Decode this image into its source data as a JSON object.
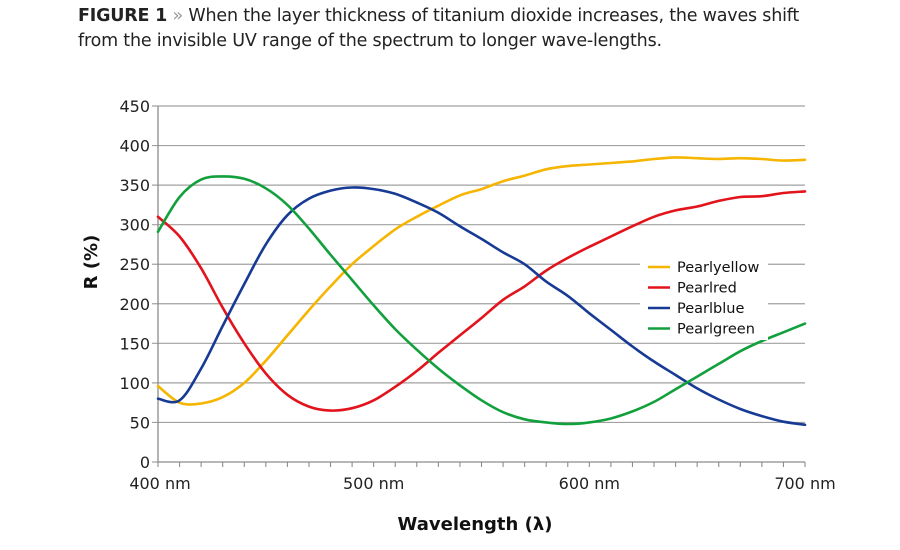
{
  "caption": {
    "figure_label": "FIGURE 1",
    "separator": "»",
    "text": "When the layer thickness of titanium dioxide increases, the waves shift from the invisible UV range of the spectrum to longer wave-lengths."
  },
  "chart_data": {
    "type": "line",
    "title": "",
    "xlabel": "Wavelength (λ)",
    "ylabel": "R (%)",
    "xlim": [
      400,
      700
    ],
    "ylim": [
      0,
      450
    ],
    "xticks": [
      400,
      500,
      600,
      700
    ],
    "xtick_labels": [
      "400 nm",
      "500 nm",
      "600 nm",
      "700 nm"
    ],
    "xminor_step": 10,
    "yticks": [
      0,
      50,
      100,
      150,
      200,
      250,
      300,
      350,
      400,
      450
    ],
    "ytick_labels": [
      "0",
      "50",
      "100",
      "150",
      "200",
      "250",
      "300",
      "350",
      "400",
      "450"
    ],
    "grid": "horizontal",
    "legend_position": "right",
    "x": [
      400,
      410,
      420,
      430,
      440,
      450,
      460,
      470,
      480,
      490,
      500,
      510,
      520,
      530,
      540,
      550,
      560,
      570,
      580,
      590,
      600,
      610,
      620,
      630,
      640,
      650,
      660,
      670,
      680,
      690,
      700
    ],
    "series": [
      {
        "name": "Pearlyellow",
        "color": "#f5b500",
        "values": [
          96,
          75,
          74,
          82,
          100,
          128,
          160,
          192,
          222,
          250,
          273,
          294,
          310,
          324,
          337,
          345,
          355,
          362,
          370,
          374,
          376,
          378,
          380,
          383,
          385,
          384,
          383,
          384,
          383,
          381,
          382
        ]
      },
      {
        "name": "Pearlred",
        "color": "#e3131b",
        "values": [
          310,
          285,
          245,
          195,
          150,
          112,
          85,
          70,
          65,
          68,
          78,
          95,
          115,
          138,
          160,
          182,
          205,
          222,
          242,
          258,
          272,
          285,
          298,
          310,
          318,
          323,
          330,
          335,
          336,
          340,
          342
        ]
      },
      {
        "name": "Pearlblue",
        "color": "#173a94",
        "values": [
          80,
          78,
          118,
          172,
          225,
          275,
          312,
          333,
          343,
          347,
          345,
          339,
          328,
          315,
          298,
          282,
          265,
          250,
          228,
          210,
          188,
          167,
          146,
          127,
          110,
          93,
          79,
          67,
          58,
          51,
          47
        ]
      },
      {
        "name": "Pearlgreen",
        "color": "#12a03c",
        "values": [
          291,
          335,
          357,
          361,
          358,
          346,
          325,
          295,
          262,
          230,
          198,
          168,
          142,
          118,
          97,
          78,
          63,
          54,
          50,
          48,
          50,
          55,
          64,
          76,
          92,
          108,
          124,
          140,
          153,
          164,
          175
        ]
      }
    ]
  }
}
